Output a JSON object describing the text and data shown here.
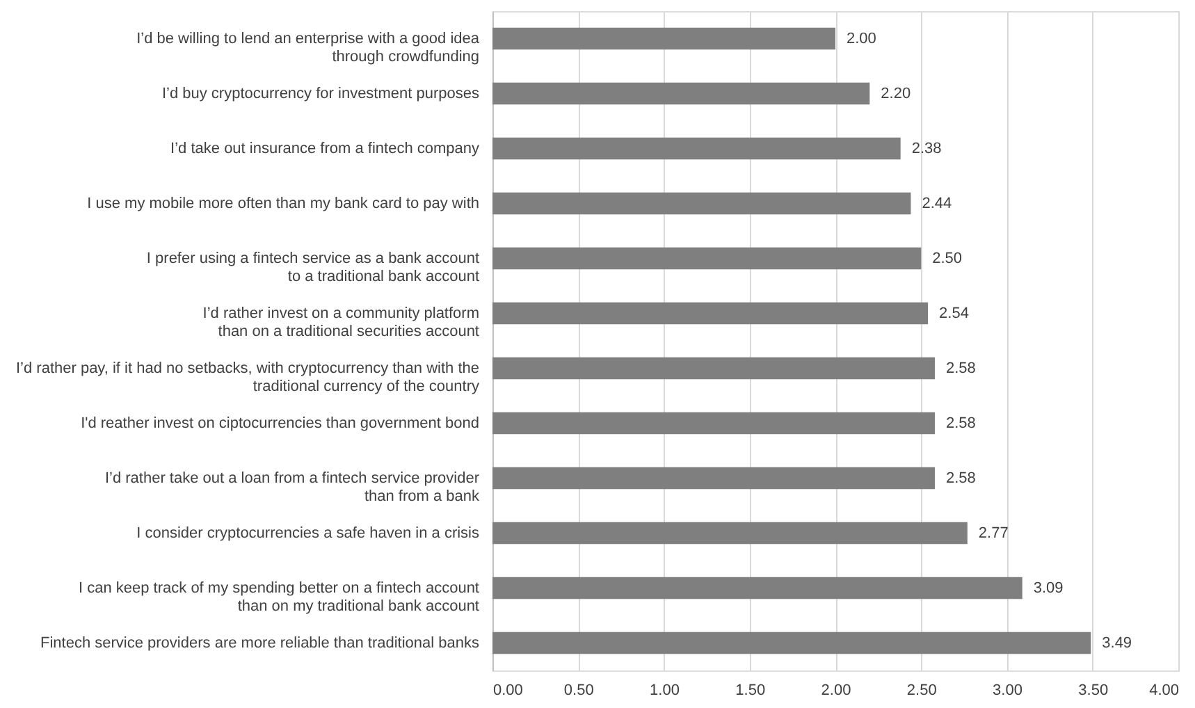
{
  "chart_data": {
    "type": "bar",
    "orientation": "horizontal",
    "categories": [
      "I’d be willing to lend an enterprise with a good idea\nthrough crowdfunding",
      "I’d buy cryptocurrency for investment purposes",
      "I’d take out insurance from a fintech company",
      "I use my mobile more often than my bank card to pay with",
      "I prefer using a fintech service as a bank account\nto a traditional bank account",
      "I’d rather invest on a community platform\nthan on a traditional securities account",
      "I’d rather pay, if it had no setbacks, with cryptocurrency than with the\ntraditional currency of the country",
      "I'd reather invest on ciptocurrencies than government bond",
      "I’d rather take out a loan from a fintech service provider\nthan from a bank",
      "I consider cryptocurrencies a safe haven in a crisis",
      "I can keep track of my spending better on a fintech account\nthan on my traditional bank account",
      "Fintech service providers are more reliable than traditional banks"
    ],
    "values": [
      2.0,
      2.2,
      2.38,
      2.44,
      2.5,
      2.54,
      2.58,
      2.58,
      2.58,
      2.77,
      3.09,
      3.49
    ],
    "value_labels": [
      "2.00",
      "2.20",
      "2.38",
      "2.44",
      "2.50",
      "2.54",
      "2.58",
      "2.58",
      "2.58",
      "2.77",
      "3.09",
      "3.49"
    ],
    "color": "#7f7f7f",
    "xlim": [
      0,
      4
    ],
    "xticks": [
      {
        "value": 0,
        "label": "0.00"
      },
      {
        "value": 0.5,
        "label": "0.50"
      },
      {
        "value": 1,
        "label": "1.00"
      },
      {
        "value": 1.5,
        "label": "1.50"
      },
      {
        "value": 2,
        "label": "2.00"
      },
      {
        "value": 2.5,
        "label": "2.50"
      },
      {
        "value": 3,
        "label": "3.00"
      },
      {
        "value": 3.5,
        "label": "3.50"
      },
      {
        "value": 4,
        "label": "4.00"
      }
    ],
    "grid": "x"
  }
}
